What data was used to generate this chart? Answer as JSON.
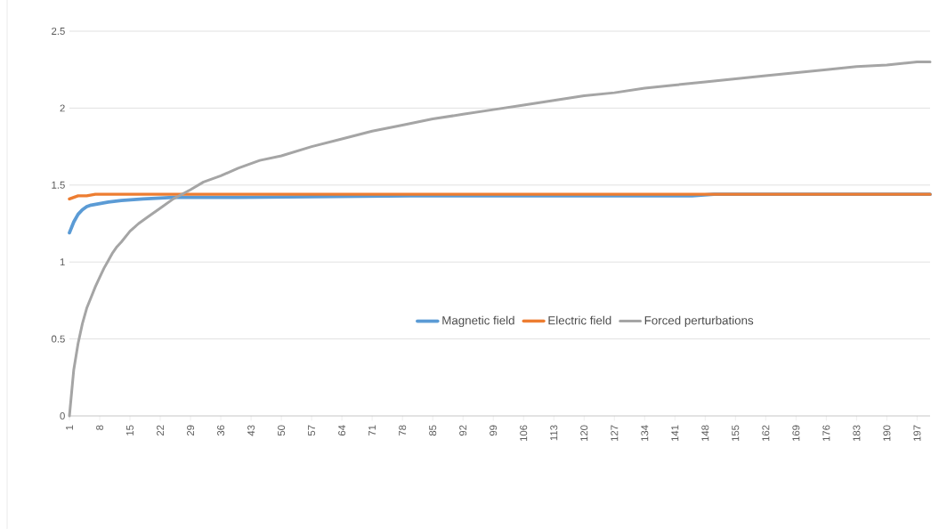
{
  "chart_data": {
    "type": "line",
    "xlim": [
      1,
      200
    ],
    "xticks": [
      1,
      8,
      15,
      22,
      29,
      36,
      43,
      50,
      57,
      64,
      71,
      78,
      85,
      92,
      99,
      106,
      113,
      120,
      127,
      134,
      141,
      148,
      155,
      162,
      169,
      176,
      183,
      190,
      197
    ],
    "ylim": [
      0,
      2.5
    ],
    "yticks": [
      0,
      0.5,
      1,
      1.5,
      2,
      2.5
    ],
    "grid": "y",
    "legend": "bottom",
    "marker": "none",
    "line_style": "solid",
    "series": [
      {
        "name": "Magnetic field",
        "color": "#5b9bd5",
        "x": [
          1,
          2,
          3,
          4,
          5,
          6,
          8,
          10,
          13,
          18,
          25,
          40,
          80,
          145,
          150,
          200
        ],
        "values": [
          1.19,
          1.26,
          1.31,
          1.34,
          1.36,
          1.37,
          1.38,
          1.39,
          1.4,
          1.41,
          1.42,
          1.42,
          1.43,
          1.43,
          1.44,
          1.44
        ]
      },
      {
        "name": "Electric field",
        "color": "#ed7d31",
        "x": [
          1,
          2,
          3,
          5,
          7,
          200
        ],
        "values": [
          1.41,
          1.42,
          1.43,
          1.43,
          1.44,
          1.44
        ]
      },
      {
        "name": "Forced perturbations",
        "color": "#a5a5a5",
        "x": [
          1,
          2,
          3,
          4,
          5,
          6,
          7,
          8,
          9,
          10,
          11,
          12,
          13,
          15,
          17,
          19,
          22,
          25,
          29,
          32,
          36,
          40,
          45,
          50,
          57,
          64,
          71,
          78,
          85,
          92,
          99,
          106,
          113,
          120,
          127,
          134,
          141,
          148,
          155,
          162,
          169,
          176,
          183,
          190,
          197,
          200
        ],
        "values": [
          0,
          0.3,
          0.47,
          0.6,
          0.7,
          0.77,
          0.84,
          0.9,
          0.96,
          1.01,
          1.06,
          1.1,
          1.13,
          1.2,
          1.25,
          1.29,
          1.35,
          1.41,
          1.47,
          1.52,
          1.56,
          1.61,
          1.66,
          1.69,
          1.75,
          1.8,
          1.85,
          1.89,
          1.93,
          1.96,
          1.99,
          2.02,
          2.05,
          2.08,
          2.1,
          2.13,
          2.15,
          2.17,
          2.19,
          2.21,
          2.23,
          2.25,
          2.27,
          2.28,
          2.3,
          2.3
        ]
      }
    ]
  }
}
